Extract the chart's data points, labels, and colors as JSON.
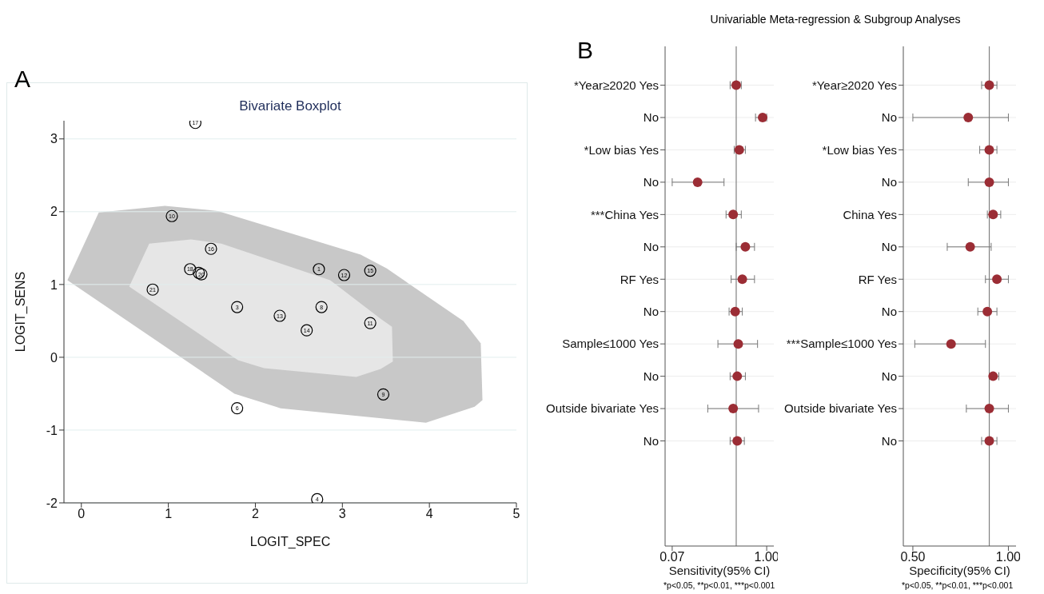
{
  "chart_data": [
    {
      "type": "scatter",
      "title": "Bivariate Boxplot",
      "xlabel": "LOGIT_SPEC",
      "ylabel": "LOGIT_SENS",
      "annotations": [
        "A"
      ],
      "xlim": [
        -0.2,
        5
      ],
      "xticks": [
        0,
        1,
        2,
        3,
        4,
        5
      ],
      "ylim": [
        -2,
        3.25
      ],
      "yticks": [
        -2,
        -1,
        0,
        1,
        2,
        3
      ],
      "grid": "y",
      "series": [
        {
          "type": "area",
          "color": "#c8c8c8",
          "x": [
            -0.16,
            0.2,
            0.96,
            1.57,
            3.21,
            3.51,
            4.39,
            4.59,
            4.61,
            4.52,
            3.96,
            2.29,
            1.76
          ],
          "values": [
            1.06,
            1.99,
            2.08,
            2.01,
            1.41,
            1.22,
            0.5,
            0.19,
            -0.59,
            -0.68,
            -0.9,
            -0.7,
            -0.5
          ]
        },
        {
          "type": "area",
          "color": "#e6e6e6",
          "x": [
            0.55,
            0.78,
            1.26,
            1.61,
            2.86,
            3.44,
            3.57,
            3.58,
            3.44,
            3.16,
            2.1,
            1.8
          ],
          "values": [
            0.97,
            1.56,
            1.62,
            1.56,
            1.06,
            0.53,
            0.42,
            -0.06,
            -0.16,
            -0.27,
            -0.15,
            -0.04
          ]
        },
        {
          "type": "scatter",
          "marker": "circle",
          "name": "17",
          "color": "#000000",
          "x": [
            1.31
          ],
          "values": [
            3.22
          ]
        },
        {
          "type": "scatter",
          "marker": "circle",
          "name": "10",
          "color": "#000000",
          "x": [
            1.04
          ],
          "values": [
            1.94
          ]
        },
        {
          "type": "scatter",
          "marker": "circle",
          "name": "16",
          "color": "#000000",
          "x": [
            1.49
          ],
          "values": [
            1.49
          ]
        },
        {
          "type": "scatter",
          "marker": "circle",
          "name": "18",
          "color": "#000000",
          "x": [
            1.25
          ],
          "values": [
            1.21
          ]
        },
        {
          "type": "scatter",
          "marker": "circle",
          "color": "#000000",
          "x": [
            1.35
          ],
          "values": [
            1.16
          ]
        },
        {
          "type": "scatter",
          "marker": "circle",
          "name": "20",
          "color": "#000000",
          "x": [
            1.38
          ],
          "values": [
            1.14
          ]
        },
        {
          "type": "scatter",
          "marker": "circle",
          "name": "21",
          "color": "#000000",
          "x": [
            0.82
          ],
          "values": [
            0.93
          ]
        },
        {
          "type": "scatter",
          "marker": "circle",
          "name": "1",
          "color": "#000000",
          "x": [
            2.73
          ],
          "values": [
            1.21
          ]
        },
        {
          "type": "scatter",
          "marker": "circle",
          "name": "12",
          "color": "#000000",
          "x": [
            3.02
          ],
          "values": [
            1.13
          ]
        },
        {
          "type": "scatter",
          "marker": "circle",
          "name": "15",
          "color": "#000000",
          "x": [
            3.32
          ],
          "values": [
            1.19
          ]
        },
        {
          "type": "scatter",
          "marker": "circle",
          "name": "3",
          "color": "#000000",
          "x": [
            1.79
          ],
          "values": [
            0.69
          ]
        },
        {
          "type": "scatter",
          "marker": "circle",
          "name": "8",
          "color": "#000000",
          "x": [
            2.76
          ],
          "values": [
            0.69
          ]
        },
        {
          "type": "scatter",
          "marker": "circle",
          "name": "13",
          "color": "#000000",
          "x": [
            2.28
          ],
          "values": [
            0.57
          ]
        },
        {
          "type": "scatter",
          "marker": "circle",
          "name": "14",
          "color": "#000000",
          "x": [
            2.59
          ],
          "values": [
            0.37
          ]
        },
        {
          "type": "scatter",
          "marker": "circle",
          "name": "11",
          "color": "#000000",
          "x": [
            3.32
          ],
          "values": [
            0.47
          ]
        },
        {
          "type": "scatter",
          "marker": "circle",
          "name": "9",
          "color": "#000000",
          "x": [
            3.47
          ],
          "values": [
            -0.51
          ]
        },
        {
          "type": "scatter",
          "marker": "circle",
          "name": "6",
          "color": "#000000",
          "x": [
            1.79
          ],
          "values": [
            -0.7
          ]
        },
        {
          "type": "scatter",
          "marker": "circle",
          "name": "4",
          "color": "#000000",
          "x": [
            2.71
          ],
          "values": [
            -1.95
          ]
        }
      ]
    },
    {
      "type": "scatter",
      "orientation": "horizontal",
      "xlabel": "Sensitivity(95% CI)",
      "annotations": [
        "B",
        "Univariable Meta-regression & Subgroup Analyses",
        "*p<0.05, **p<0.01, ***p<0.001"
      ],
      "categories": [
        "*Year≥2020 Yes",
        "No",
        "*Low bias Yes",
        "No",
        "***China Yes",
        "No",
        "RF Yes",
        "No",
        "Sample≤1000 Yes",
        "No",
        "Outside bivariate Yes",
        "No"
      ],
      "values": [
        0.7,
        0.96,
        0.73,
        0.32,
        0.67,
        0.79,
        0.76,
        0.69,
        0.72,
        0.71,
        0.67,
        0.71
      ],
      "errors": [
        [
          0.64,
          0.75
        ],
        [
          0.89,
          1.0
        ],
        [
          0.68,
          0.79
        ],
        [
          0.07,
          0.58
        ],
        [
          0.6,
          0.75
        ],
        [
          0.7,
          0.88
        ],
        [
          0.65,
          0.88
        ],
        [
          0.63,
          0.76
        ],
        [
          0.52,
          0.91
        ],
        [
          0.64,
          0.79
        ],
        [
          0.42,
          0.92
        ],
        [
          0.64,
          0.78
        ]
      ],
      "color": "#9b2d35",
      "marker": "circle",
      "grid": "y",
      "xlim": [
        0,
        1.07
      ],
      "xticks": [
        {
          "value": 0.07,
          "label": "0.07"
        },
        {
          "value": 1,
          "label": "1.00"
        }
      ],
      "ref_lines": [
        {
          "axis": "x",
          "value": 0.7,
          "color": "#808080"
        }
      ]
    },
    {
      "type": "scatter",
      "orientation": "horizontal",
      "xlabel": "Specificity(95% CI)",
      "annotations": [
        "*p<0.05, **p<0.01, ***p<0.001"
      ],
      "categories": [
        "*Year≥2020 Yes",
        "No",
        "*Low bias Yes",
        "No",
        "China Yes",
        "No",
        "RF Yes",
        "No",
        "***Sample≤1000 Yes",
        "No",
        "Outside bivariate Yes",
        "No"
      ],
      "values": [
        0.9,
        0.79,
        0.9,
        0.9,
        0.92,
        0.8,
        0.94,
        0.89,
        0.7,
        0.92,
        0.9,
        0.9
      ],
      "errors": [
        [
          0.86,
          0.94
        ],
        [
          0.5,
          1.0
        ],
        [
          0.85,
          0.94
        ],
        [
          0.79,
          1.0
        ],
        [
          0.89,
          0.96
        ],
        [
          0.68,
          0.91
        ],
        [
          0.88,
          1.0
        ],
        [
          0.84,
          0.94
        ],
        [
          0.51,
          0.88
        ],
        [
          0.9,
          0.95
        ],
        [
          0.78,
          1.0
        ],
        [
          0.86,
          0.94
        ]
      ],
      "color": "#9b2d35",
      "marker": "circle",
      "grid": "y",
      "xlim": [
        0.45,
        1.04
      ],
      "xticks": [
        {
          "value": 0.5,
          "label": "0.50"
        },
        {
          "value": 1,
          "label": "1.00"
        }
      ],
      "ref_lines": [
        {
          "axis": "x",
          "value": 0.9,
          "color": "#808080"
        }
      ]
    }
  ]
}
